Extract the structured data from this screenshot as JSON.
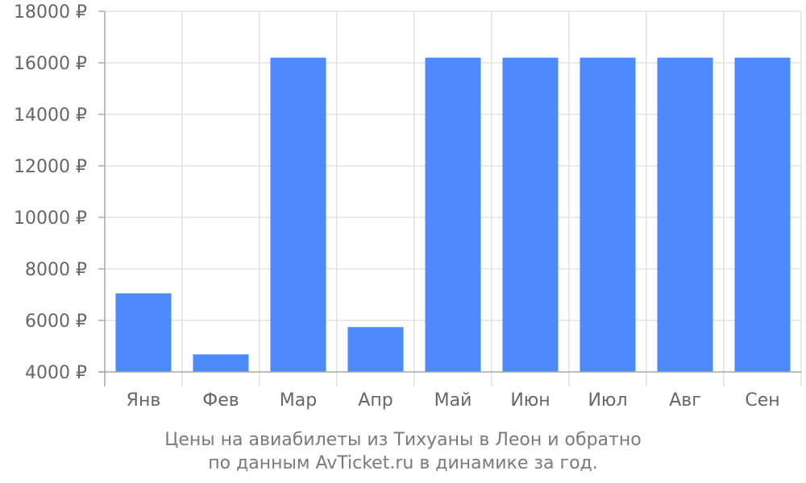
{
  "chart_data": {
    "type": "bar",
    "categories": [
      "Янв",
      "Фев",
      "Мар",
      "Апр",
      "Май",
      "Июн",
      "Июл",
      "Авг",
      "Сен"
    ],
    "values": [
      7050,
      4680,
      16200,
      5740,
      16200,
      16200,
      16200,
      16200,
      16200
    ],
    "ylim": [
      4000,
      18000
    ],
    "yticks": [
      4000,
      6000,
      8000,
      10000,
      12000,
      14000,
      16000,
      18000
    ],
    "ytick_labels": [
      "4000 ₽",
      "6000 ₽",
      "8000 ₽",
      "10000 ₽",
      "12000 ₽",
      "14000 ₽",
      "16000 ₽",
      "18000 ₽"
    ],
    "grid": true,
    "bar_color": "#4d8afb",
    "grid_color": "#e3e3e3",
    "axis_color": "#aaaaaa"
  },
  "caption": {
    "line1": "Цены на авиабилеты из Тихуаны в Леон и обратно",
    "line2": "по данным AvTicket.ru в динамике за год."
  }
}
